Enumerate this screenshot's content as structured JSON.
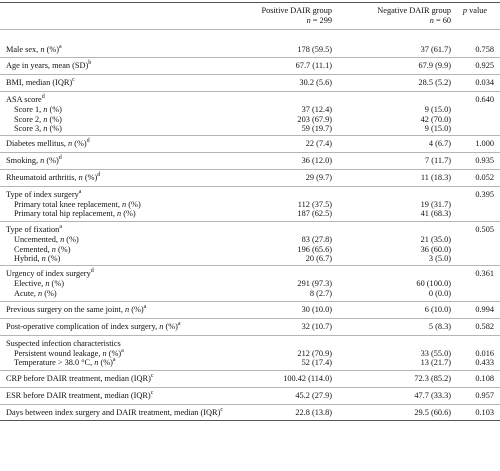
{
  "header": {
    "pos_line1": "Positive DAIR group",
    "pos_line2": "n = 299",
    "neg_line1": "Negative DAIR group",
    "neg_line2": "n = 60",
    "p": "p value"
  },
  "rows": {
    "male": {
      "label": "Male sex, n (%)",
      "sup": "a",
      "pos": "178 (59.5)",
      "neg": "37 (61.7)",
      "p": "0.758"
    },
    "age": {
      "label": "Age in years, mean (SD)",
      "sup": "b",
      "pos": "67.7 (11.1)",
      "neg": "67.9 (9.9)",
      "p": "0.925"
    },
    "bmi": {
      "label": "BMI, median (IQR)",
      "sup": "c",
      "pos": "30.2 (5.6)",
      "neg": "28.5 (5.2)",
      "p": "0.034"
    },
    "asa": {
      "label": "ASA score",
      "sup": "d",
      "p": "0.640"
    },
    "asa1": {
      "label": "Score 1, n (%)",
      "pos": "37 (12.4)",
      "neg": "9 (15.0)"
    },
    "asa2": {
      "label": "Score 2, n (%)",
      "pos": "203 (67.9)",
      "neg": "42 (70.0)"
    },
    "asa3": {
      "label": "Score 3, n (%)",
      "pos": "59 (19.7)",
      "neg": "9 (15.0)"
    },
    "diab": {
      "label": "Diabetes mellitus, n (%)",
      "sup": "d",
      "pos": "22 (7.4)",
      "neg": "4 (6.7)",
      "p": "1.000"
    },
    "smok": {
      "label": "Smoking, n (%)",
      "sup": "d",
      "pos": "36 (12.0)",
      "neg": "7 (11.7)",
      "p": "0.935"
    },
    "rheu": {
      "label": "Rheumatoid arthritis, n (%)",
      "sup": "d",
      "pos": "29 (9.7)",
      "neg": "11 (18.3)",
      "p": "0.052"
    },
    "idx": {
      "label": "Type of index surgery",
      "sup": "a",
      "p": "0.395"
    },
    "knee": {
      "label": "Primary total knee replacement, n (%)",
      "pos": "112 (37.5)",
      "neg": "19 (31.7)"
    },
    "hip": {
      "label": "Primary total hip replacement, n (%)",
      "pos": "187 (62.5)",
      "neg": "41 (68.3)"
    },
    "fix": {
      "label": "Type of fixation",
      "sup": "a",
      "p": "0.505"
    },
    "unc": {
      "label": "Uncemented, n (%)",
      "pos": "83 (27.8)",
      "neg": "21 (35.0)"
    },
    "cem": {
      "label": "Cemented, n (%)",
      "pos": "196 (65.6)",
      "neg": "36 (60.0)"
    },
    "hyb": {
      "label": "Hybrid, n (%)",
      "pos": "20 (6.7)",
      "neg": "3 (5.0)"
    },
    "urg": {
      "label": "Urgency of index surgery",
      "sup": "d",
      "p": "0.361"
    },
    "ele": {
      "label": "Elective, n (%)",
      "pos": "291 (97.3)",
      "neg": "60 (100.0)"
    },
    "acu": {
      "label": "Acute, n (%)",
      "pos": "8 (2.7)",
      "neg": "0 (0.0)"
    },
    "prev": {
      "label": "Previous surgery on the same joint, n (%)",
      "sup": "a",
      "pos": "30 (10.0)",
      "neg": "6 (10.0)",
      "p": "0.994"
    },
    "post": {
      "label": "Post-operative complication of index surgery, n (%)",
      "sup": "a",
      "pos": "32 (10.7)",
      "neg": "5 (8.3)",
      "p": "0.582"
    },
    "susp": {
      "label": "Suspected infection characteristics"
    },
    "pers": {
      "label": "Persistent wound leakage, n (%)",
      "sup": "a",
      "pos": "212 (70.9)",
      "neg": "33 (55.0)",
      "p": "0.016"
    },
    "temp": {
      "label": "Temperature > 38.0 °C, n (%)",
      "sup": "a",
      "pos": "52 (17.4)",
      "neg": "13 (21.7)",
      "p": "0.433"
    },
    "crp": {
      "label": "CRP before DAIR treatment, median (IQR)",
      "sup": "c",
      "pos": "100.42 (114.0)",
      "neg": "72.3 (85.2)",
      "p": "0.108"
    },
    "esr": {
      "label": "ESR before DAIR treatment, median (IQR)",
      "sup": "c",
      "pos": "45.2 (27.9)",
      "neg": "47.7 (33.3)",
      "p": "0.957"
    },
    "days": {
      "label": "Days between index surgery and DAIR treatment, median (IQR)",
      "sup": "c",
      "pos": "22.8 (13.8)",
      "neg": "29.5 (60.6)",
      "p": "0.103"
    }
  }
}
